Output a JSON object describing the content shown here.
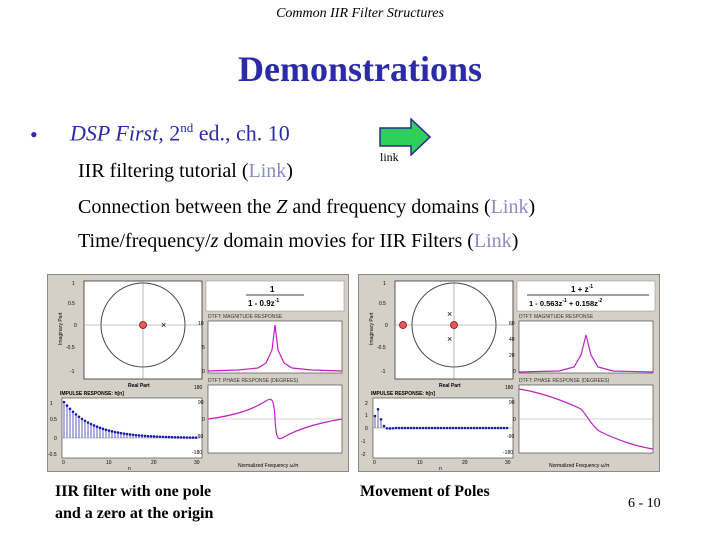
{
  "header": "Common IIR Filter Structures",
  "title": "Demonstrations",
  "bullet": {
    "symbol": "•",
    "book": "DSP First,",
    "edition_num": " 2",
    "edition_sup": "nd",
    "edition_rest": " ed., ch. 10"
  },
  "arrow": {
    "label": "link",
    "color": "#2fd05a"
  },
  "lines": [
    {
      "text": "IIR filtering tutorial (",
      "link": "Link",
      "close": ")"
    },
    {
      "text_a": "Connection between the ",
      "italic": "Z",
      "text_b": " and frequency domains (",
      "link": "Link",
      "close": ")"
    },
    {
      "text_a": "Time/frequency/",
      "italic": "z",
      "text_b": " domain movies for IIR Filters (",
      "link": "Link",
      "close": ")"
    }
  ],
  "panels": [
    {
      "zplane_ylabel": "Imaginary Part",
      "zplane_xlabel": "Real Part",
      "zplane_yticks": [
        "1",
        "0.5",
        "0",
        "-0.5",
        "-1"
      ],
      "tf_num": "1",
      "tf_den": "1 - 0.9z",
      "tf_den_exp": "-1",
      "mag_title": "DTFT: MAGNITUDE RESPONSE",
      "phase_title": "DTFT: PHASE RESPONSE (DEGREES)",
      "impulse_title": "IMPULSE RESPONSE: h[n]",
      "impulse_xlabel": "n",
      "freq_xlabel": "Normalized Frequency ω/π",
      "impulse_yticks": [
        "1",
        "0.5",
        "0",
        "-0.5"
      ],
      "impulse_xticks": [
        "0",
        "10",
        "20",
        "30"
      ],
      "mag_yticks": [
        "10",
        "5",
        "0"
      ],
      "phase_yticks": [
        "180",
        "90",
        "0",
        "-90",
        "-180"
      ],
      "freq_xticks": [
        "-1",
        "-0.8",
        "-0.6",
        "-0.4",
        "-0.2",
        "0",
        "0.2",
        "0.4",
        "0.6",
        "0.8",
        "1"
      ]
    },
    {
      "zplane_ylabel": "Imaginary Part",
      "zplane_xlabel": "Real Part",
      "zplane_yticks": [
        "1",
        "0.5",
        "0",
        "-0.5",
        "-1"
      ],
      "tf_num": "1 + z",
      "tf_num_exp": "-1",
      "tf_den": "1 - 0.563z",
      "tf_den_exp": "-1",
      "tf_den2": " + 0.158z",
      "tf_den2_exp": "-2",
      "mag_title": "DTFT: MAGNITUDE RESPONSE",
      "phase_title": "DTFT: PHASE RESPONSE (DEGREES)",
      "impulse_title": "IMPULSE RESPONSE: h[n]",
      "impulse_xlabel": "n",
      "freq_xlabel": "Normalized Frequency ω/π",
      "impulse_yticks": [
        "2",
        "1",
        "0",
        "-1",
        "-2"
      ],
      "impulse_xticks": [
        "0",
        "10",
        "20",
        "30"
      ],
      "mag_yticks": [
        "60",
        "40",
        "20",
        "0"
      ],
      "phase_yticks": [
        "180",
        "90",
        "0",
        "-90",
        "-180"
      ],
      "freq_xticks": [
        "-1",
        "-0.8",
        "-0.6",
        "-0.4",
        "-0.2",
        "0",
        "0.2",
        "0.4",
        "0.6",
        "0.8",
        "1"
      ]
    }
  ],
  "captions": {
    "left_1": "IIR filter with one pole",
    "left_2": "and a zero at the origin",
    "right": "Movement of Poles"
  },
  "page_number": "6 - 10"
}
